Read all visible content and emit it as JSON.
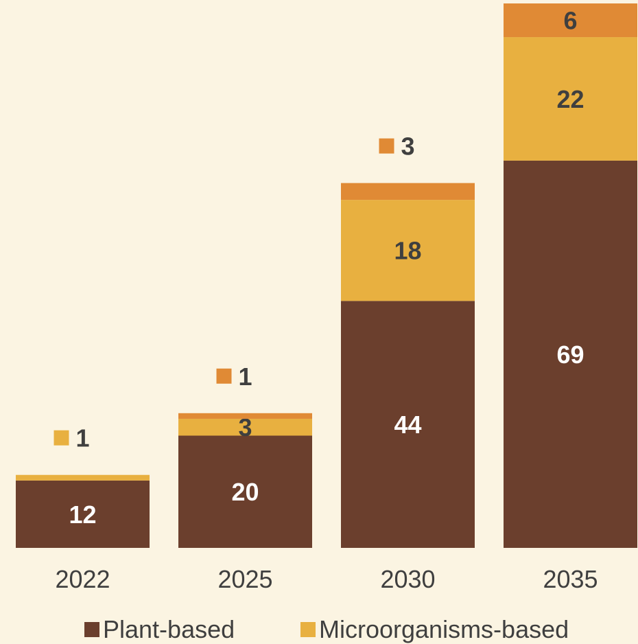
{
  "chart_data": {
    "type": "bar",
    "stacked": true,
    "categories": [
      "2022",
      "2025",
      "2030",
      "2035"
    ],
    "series": [
      {
        "name": "Plant-based",
        "color": "#6b3f2d",
        "values": [
          12,
          20,
          44,
          69
        ],
        "labels": [
          "12",
          "20",
          "44",
          "69"
        ]
      },
      {
        "name": "Microorganisms-based",
        "color": "#e8b040",
        "values": [
          1,
          3,
          18,
          22
        ],
        "labels": [
          "1",
          "3",
          "18",
          "22"
        ]
      },
      {
        "name": "",
        "color": "#e08a35",
        "values": [
          0,
          1,
          3,
          6
        ],
        "labels": [
          "",
          "1",
          "3",
          "6"
        ]
      }
    ],
    "ylim": [
      0,
      97
    ],
    "grid": false,
    "legend_position": "bottom"
  }
}
